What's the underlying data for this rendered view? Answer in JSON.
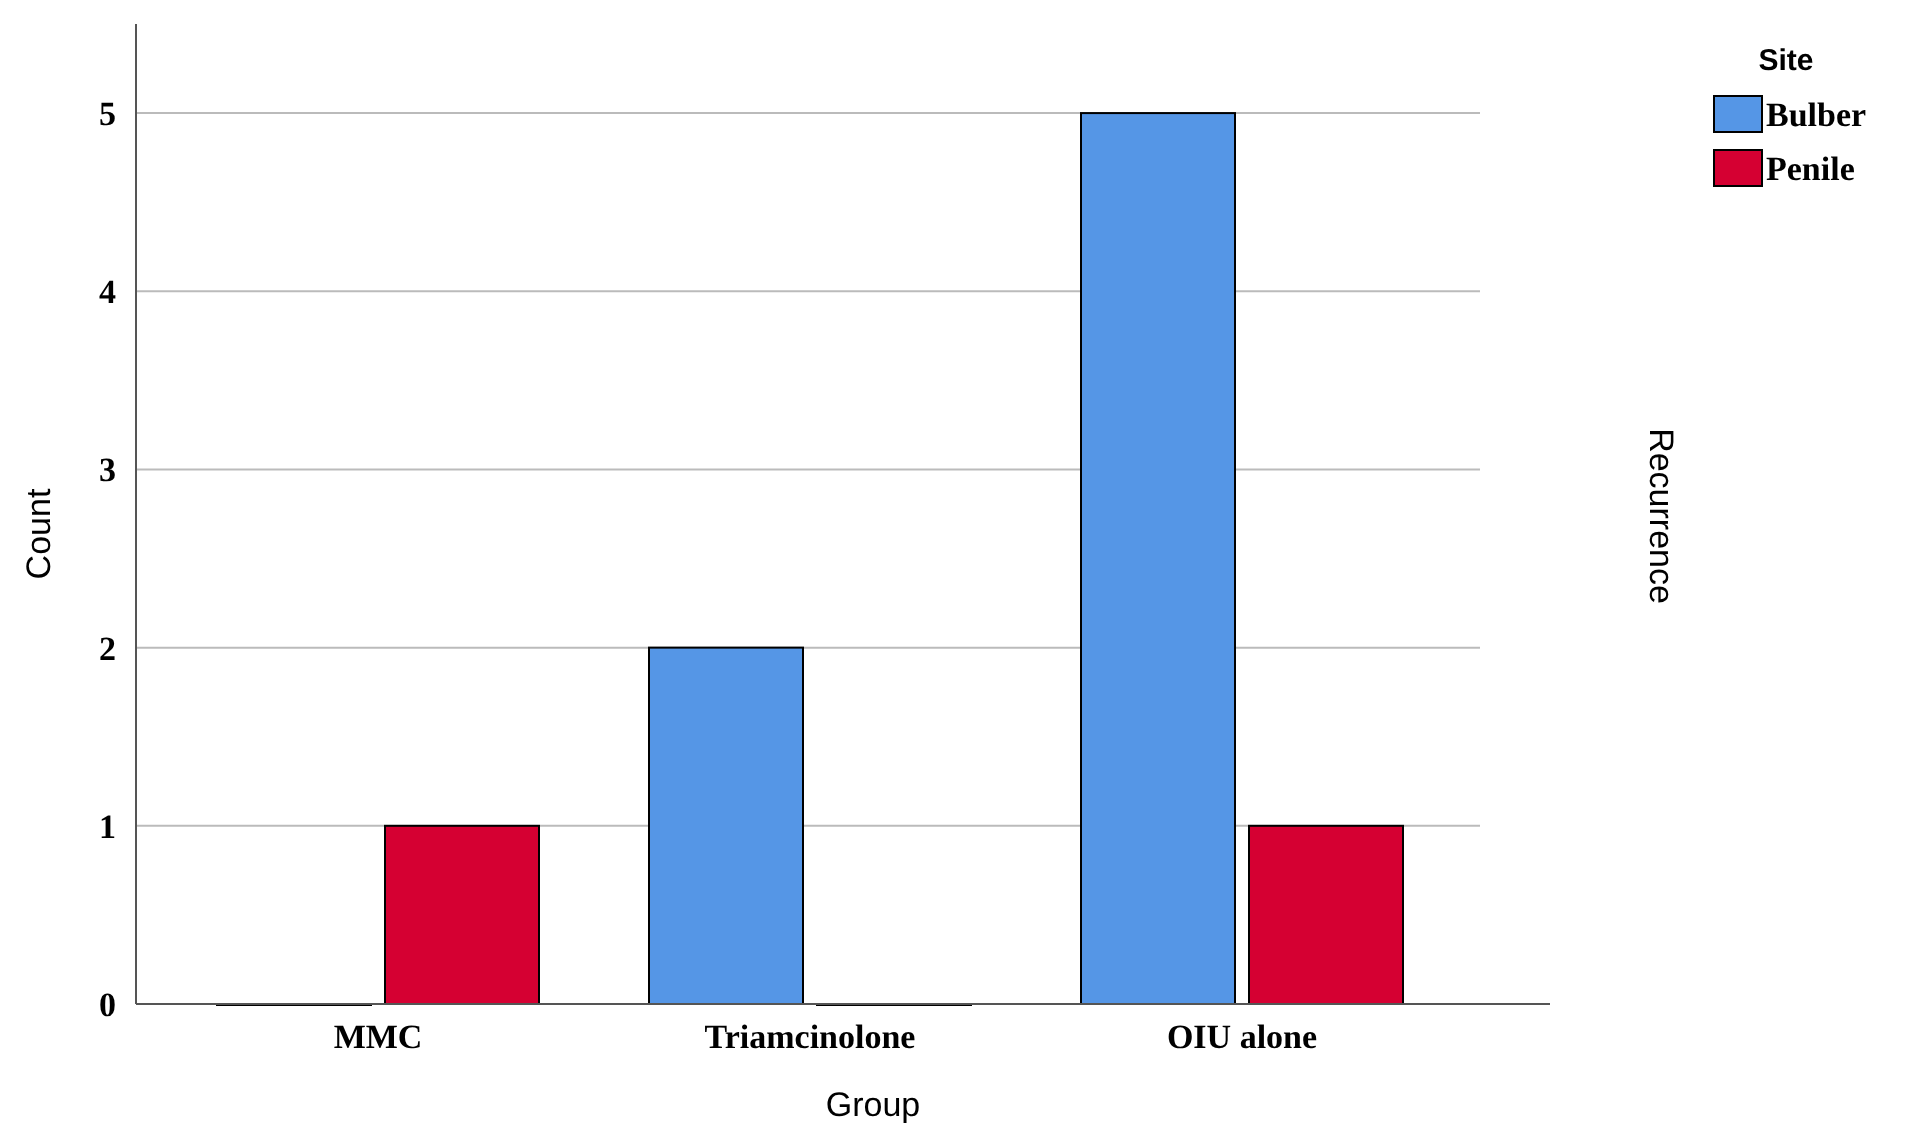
{
  "chart_data": {
    "type": "bar",
    "xlabel": "Group",
    "ylabel": "Count",
    "legend_title": "Site",
    "categories": [
      "MMC",
      "Triamcinolone",
      "OIU alone"
    ],
    "series": [
      {
        "name": "Bulber",
        "color": "#5596e6",
        "values": [
          0,
          2,
          5
        ]
      },
      {
        "name": "Penile",
        "color": "#d50032",
        "values": [
          1,
          0,
          1
        ]
      }
    ],
    "ylim": [
      0,
      5.5
    ],
    "yticks": [
      0,
      1,
      2,
      3,
      4,
      5
    ],
    "grid": "y",
    "legend": "top right",
    "annotations": [
      "Recurrence"
    ]
  }
}
